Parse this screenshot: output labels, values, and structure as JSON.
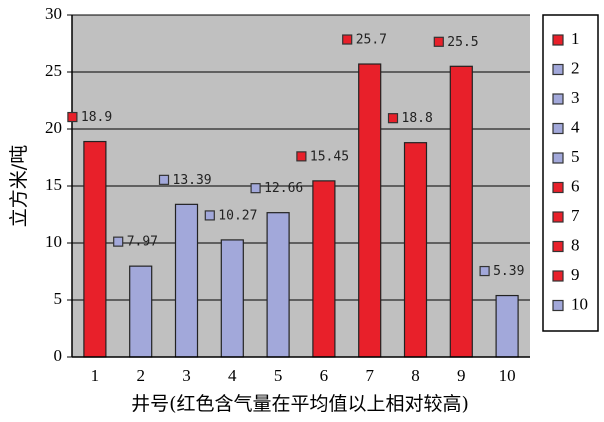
{
  "chart_data": {
    "type": "bar",
    "x_label": "井号(红色含气量在平均值以上相对较高)",
    "y_label": "立方米/吨",
    "categories": [
      "1",
      "2",
      "3",
      "4",
      "5",
      "6",
      "7",
      "8",
      "9",
      "10"
    ],
    "values": [
      18.9,
      7.97,
      13.39,
      10.27,
      12.66,
      15.45,
      25.7,
      18.8,
      25.5,
      5.39
    ],
    "colors": [
      "#e8202a",
      "#a2a8da",
      "#a2a8da",
      "#a2a8da",
      "#a2a8da",
      "#e8202a",
      "#e8202a",
      "#e8202a",
      "#e8202a",
      "#a2a8da"
    ],
    "ylim": [
      0,
      30
    ],
    "yticks": [
      0,
      5,
      10,
      15,
      20,
      25,
      30
    ],
    "grid": true,
    "legend": "right"
  }
}
